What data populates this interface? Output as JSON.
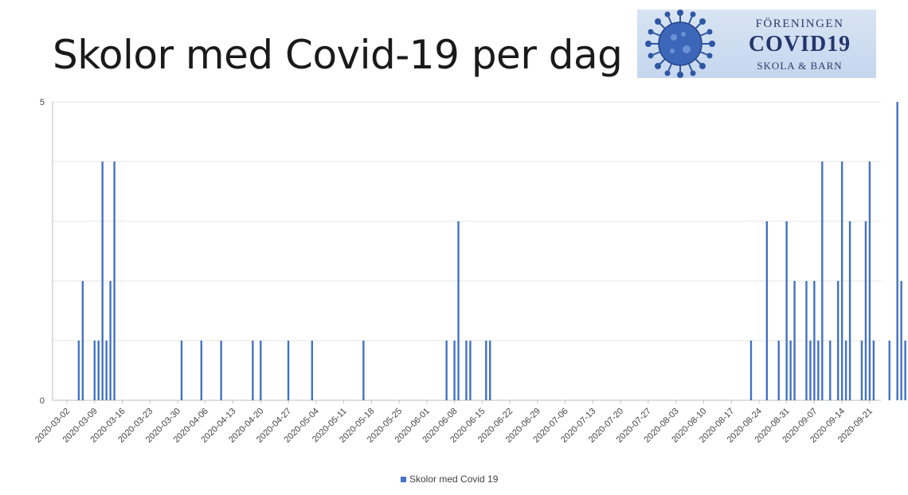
{
  "title": "Skolor med Covid-19 per dag",
  "logo": {
    "line1": "FÖRENINGEN",
    "line2": "COVID19",
    "line3": "SKOLA & BARN",
    "icon": "virus-icon"
  },
  "chart_data": {
    "type": "bar",
    "title": "Skolor med Covid-19 per dag",
    "xlabel": "",
    "ylabel": "",
    "ylim": [
      0,
      5
    ],
    "y_ticks": [
      "0",
      "5"
    ],
    "grid": true,
    "legend_position": "bottom",
    "series_color": "#4472c4",
    "start_date": "2020-03-02",
    "end_date": "2020-09-24",
    "x_tick_labels": [
      "2020-03-02",
      "2020-03-09",
      "2020-03-16",
      "2020-03-23",
      "2020-03-30",
      "2020-04-06",
      "2020-04-13",
      "2020-04-20",
      "2020-04-27",
      "2020-05-04",
      "2020-05-11",
      "2020-05-18",
      "2020-05-25",
      "2020-06-01",
      "2020-06-08",
      "2020-06-15",
      "2020-06-22",
      "2020-06-29",
      "2020-07-06",
      "2020-07-13",
      "2020-07-20",
      "2020-07-27",
      "2020-08-03",
      "2020-08-10",
      "2020-08-17",
      "2020-08-24",
      "2020-08-31",
      "2020-09-07",
      "2020-09-14",
      "2020-09-21"
    ],
    "series": [
      {
        "name": "Skolor med Covid 19",
        "points": [
          {
            "x": "2020-03-05",
            "y": 1
          },
          {
            "x": "2020-03-06",
            "y": 2
          },
          {
            "x": "2020-03-09",
            "y": 1
          },
          {
            "x": "2020-03-10",
            "y": 1
          },
          {
            "x": "2020-03-11",
            "y": 4
          },
          {
            "x": "2020-03-12",
            "y": 1
          },
          {
            "x": "2020-03-13",
            "y": 2
          },
          {
            "x": "2020-03-14",
            "y": 4
          },
          {
            "x": "2020-03-31",
            "y": 1
          },
          {
            "x": "2020-04-05",
            "y": 1
          },
          {
            "x": "2020-04-10",
            "y": 1
          },
          {
            "x": "2020-04-18",
            "y": 1
          },
          {
            "x": "2020-04-20",
            "y": 1
          },
          {
            "x": "2020-04-27",
            "y": 1
          },
          {
            "x": "2020-05-03",
            "y": 1
          },
          {
            "x": "2020-05-16",
            "y": 1
          },
          {
            "x": "2020-06-06",
            "y": 1
          },
          {
            "x": "2020-06-08",
            "y": 1
          },
          {
            "x": "2020-06-09",
            "y": 3
          },
          {
            "x": "2020-06-11",
            "y": 1
          },
          {
            "x": "2020-06-12",
            "y": 1
          },
          {
            "x": "2020-06-16",
            "y": 1
          },
          {
            "x": "2020-06-17",
            "y": 1
          },
          {
            "x": "2020-08-22",
            "y": 1
          },
          {
            "x": "2020-08-26",
            "y": 3
          },
          {
            "x": "2020-08-29",
            "y": 1
          },
          {
            "x": "2020-08-31",
            "y": 3
          },
          {
            "x": "2020-09-01",
            "y": 1
          },
          {
            "x": "2020-09-02",
            "y": 2
          },
          {
            "x": "2020-09-05",
            "y": 2
          },
          {
            "x": "2020-09-06",
            "y": 1
          },
          {
            "x": "2020-09-07",
            "y": 2
          },
          {
            "x": "2020-09-08",
            "y": 1
          },
          {
            "x": "2020-09-09",
            "y": 4
          },
          {
            "x": "2020-09-11",
            "y": 1
          },
          {
            "x": "2020-09-13",
            "y": 2
          },
          {
            "x": "2020-09-14",
            "y": 4
          },
          {
            "x": "2020-09-15",
            "y": 1
          },
          {
            "x": "2020-09-16",
            "y": 3
          },
          {
            "x": "2020-09-19",
            "y": 1
          },
          {
            "x": "2020-09-20",
            "y": 3
          },
          {
            "x": "2020-09-21",
            "y": 4
          },
          {
            "x": "2020-09-22",
            "y": 1
          },
          {
            "x": "2020-09-26",
            "y": 1
          },
          {
            "x": "2020-09-28",
            "y": 5
          },
          {
            "x": "2020-09-29",
            "y": 2
          },
          {
            "x": "2020-09-30",
            "y": 1
          }
        ]
      }
    ]
  }
}
